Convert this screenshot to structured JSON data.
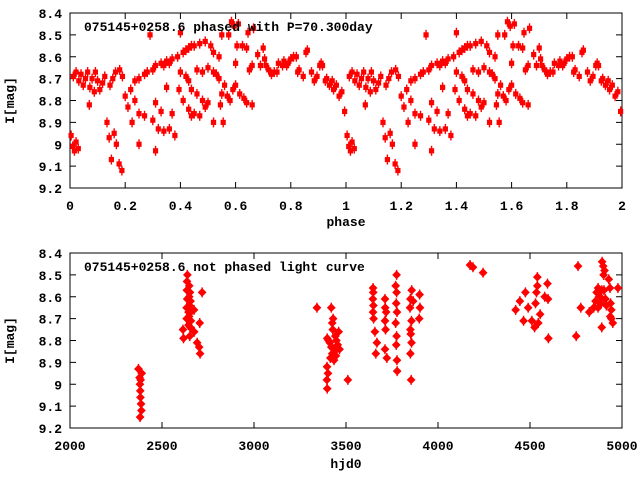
{
  "figure": {
    "background": "#ffffff",
    "point_color": "#ff0000",
    "axis_color": "#000000",
    "aria_label": "Two stacked light-curve scatter plots for star 075145+0258.6"
  },
  "chart_data": [
    {
      "type": "scatter",
      "panel": "top",
      "title": "075145+0258.6 phased with P=70.300day",
      "xlabel": "phase",
      "ylabel": "I[mag]",
      "xlim": [
        0,
        2
      ],
      "ylim": [
        9.2,
        8.4
      ],
      "grid": false,
      "legend": "none",
      "marker": "filled-square-with-errorbar",
      "x_ticks": [
        "0",
        "0.2",
        "0.4",
        "0.6",
        "0.8",
        "1",
        "1.2",
        "1.4",
        "1.6",
        "1.8",
        "2"
      ],
      "x_tick_values": [
        0,
        0.2,
        0.4,
        0.6,
        0.8,
        1,
        1.2,
        1.4,
        1.6,
        1.8,
        2
      ],
      "y_ticks": [
        "8.4",
        "8.5",
        "8.6",
        "8.7",
        "8.8",
        "8.9",
        "9",
        "9.1",
        "9.2"
      ],
      "y_tick_values": [
        8.4,
        8.5,
        8.6,
        8.7,
        8.8,
        8.9,
        9.0,
        9.1,
        9.2
      ],
      "phase_duplicated": true,
      "points": [
        [
          0.004,
          8.96
        ],
        [
          0.01,
          9.01
        ],
        [
          0.016,
          9.03
        ],
        [
          0.022,
          8.99
        ],
        [
          0.03,
          9.02
        ],
        [
          0.012,
          8.69
        ],
        [
          0.022,
          8.67
        ],
        [
          0.032,
          8.71
        ],
        [
          0.04,
          8.68
        ],
        [
          0.048,
          8.73
        ],
        [
          0.056,
          8.7
        ],
        [
          0.064,
          8.67
        ],
        [
          0.072,
          8.74
        ],
        [
          0.08,
          8.7
        ],
        [
          0.088,
          8.76
        ],
        [
          0.092,
          8.67
        ],
        [
          0.1,
          8.71
        ],
        [
          0.07,
          8.82
        ],
        [
          0.108,
          8.75
        ],
        [
          0.118,
          8.72
        ],
        [
          0.126,
          8.69
        ],
        [
          0.134,
          8.9
        ],
        [
          0.142,
          8.97
        ],
        [
          0.15,
          9.07
        ],
        [
          0.16,
          8.95
        ],
        [
          0.168,
          9.0
        ],
        [
          0.178,
          9.09
        ],
        [
          0.188,
          9.12
        ],
        [
          0.145,
          8.73
        ],
        [
          0.155,
          8.7
        ],
        [
          0.165,
          8.67
        ],
        [
          0.18,
          8.66
        ],
        [
          0.19,
          8.69
        ],
        [
          0.2,
          8.78
        ],
        [
          0.21,
          8.83
        ],
        [
          0.22,
          8.75
        ],
        [
          0.225,
          8.9
        ],
        [
          0.235,
          8.71
        ],
        [
          0.235,
          8.8
        ],
        [
          0.25,
          8.7
        ],
        [
          0.25,
          8.86
        ],
        [
          0.25,
          9.0
        ],
        [
          0.27,
          8.68
        ],
        [
          0.27,
          8.87
        ],
        [
          0.28,
          8.67
        ],
        [
          0.29,
          8.5
        ],
        [
          0.3,
          8.66
        ],
        [
          0.3,
          8.89
        ],
        [
          0.31,
          8.64
        ],
        [
          0.31,
          9.03
        ],
        [
          0.32,
          8.93
        ],
        [
          0.33,
          8.63
        ],
        [
          0.34,
          8.64
        ],
        [
          0.34,
          8.94
        ],
        [
          0.35,
          8.62
        ],
        [
          0.36,
          8.63
        ],
        [
          0.36,
          8.93
        ],
        [
          0.37,
          8.61
        ],
        [
          0.38,
          8.96
        ],
        [
          0.39,
          8.6
        ],
        [
          0.4,
          8.49
        ],
        [
          0.41,
          8.58
        ],
        [
          0.4,
          8.67
        ],
        [
          0.42,
          8.69
        ],
        [
          0.31,
          8.81
        ],
        [
          0.33,
          8.85
        ],
        [
          0.35,
          8.74
        ],
        [
          0.37,
          8.86
        ],
        [
          0.395,
          8.75
        ],
        [
          0.42,
          8.57
        ],
        [
          0.43,
          8.56
        ],
        [
          0.43,
          8.71
        ],
        [
          0.43,
          8.84
        ],
        [
          0.44,
          8.55
        ],
        [
          0.44,
          8.75
        ],
        [
          0.45,
          8.55
        ],
        [
          0.45,
          8.86
        ],
        [
          0.46,
          8.77
        ],
        [
          0.46,
          8.66
        ],
        [
          0.47,
          8.54
        ],
        [
          0.47,
          8.87
        ],
        [
          0.48,
          8.67
        ],
        [
          0.49,
          8.53
        ],
        [
          0.49,
          8.83
        ],
        [
          0.5,
          8.65
        ],
        [
          0.51,
          8.55
        ],
        [
          0.52,
          8.58
        ],
        [
          0.52,
          8.67
        ],
        [
          0.53,
          8.68
        ],
        [
          0.54,
          8.6
        ],
        [
          0.54,
          8.7
        ],
        [
          0.55,
          8.5
        ],
        [
          0.55,
          8.77
        ],
        [
          0.56,
          8.73
        ],
        [
          0.57,
          8.78
        ],
        [
          0.575,
          8.5
        ],
        [
          0.58,
          8.8
        ],
        [
          0.585,
          8.44
        ],
        [
          0.59,
          8.75
        ],
        [
          0.595,
          8.46
        ],
        [
          0.6,
          8.73
        ],
        [
          0.6,
          8.63
        ],
        [
          0.605,
          8.55
        ],
        [
          0.41,
          8.8
        ],
        [
          0.44,
          8.87
        ],
        [
          0.48,
          8.8
        ],
        [
          0.5,
          8.81
        ],
        [
          0.52,
          8.9
        ],
        [
          0.545,
          8.82
        ],
        [
          0.555,
          8.9
        ],
        [
          0.61,
          8.45
        ],
        [
          0.615,
          8.77
        ],
        [
          0.625,
          8.55
        ],
        [
          0.63,
          8.79
        ],
        [
          0.64,
          8.56
        ],
        [
          0.645,
          8.49
        ],
        [
          0.65,
          8.66
        ],
        [
          0.66,
          8.64
        ],
        [
          0.665,
          8.47
        ],
        [
          0.68,
          8.59
        ],
        [
          0.69,
          8.64
        ],
        [
          0.7,
          8.56
        ],
        [
          0.705,
          8.61
        ],
        [
          0.71,
          8.64
        ],
        [
          0.72,
          8.66
        ],
        [
          0.73,
          8.68
        ],
        [
          0.74,
          8.67
        ],
        [
          0.75,
          8.67
        ],
        [
          0.755,
          8.63
        ],
        [
          0.77,
          8.64
        ],
        [
          0.775,
          8.62
        ],
        [
          0.785,
          8.64
        ],
        [
          0.79,
          8.63
        ],
        [
          0.8,
          8.61
        ],
        [
          0.64,
          8.81
        ],
        [
          0.66,
          8.82
        ],
        [
          0.81,
          8.6
        ],
        [
          0.82,
          8.6
        ],
        [
          0.825,
          8.67
        ],
        [
          0.83,
          8.66
        ],
        [
          0.845,
          8.69
        ],
        [
          0.855,
          8.58
        ],
        [
          0.86,
          8.57
        ],
        [
          0.875,
          8.67
        ],
        [
          0.885,
          8.71
        ],
        [
          0.895,
          8.69
        ],
        [
          0.905,
          8.64
        ],
        [
          0.91,
          8.63
        ],
        [
          0.915,
          8.64
        ],
        [
          0.925,
          8.71
        ],
        [
          0.93,
          8.7
        ],
        [
          0.94,
          8.73
        ],
        [
          0.95,
          8.71
        ],
        [
          0.955,
          8.75
        ],
        [
          0.965,
          8.73
        ],
        [
          0.975,
          8.78
        ],
        [
          0.985,
          8.76
        ],
        [
          0.995,
          8.85
        ]
      ]
    },
    {
      "type": "scatter",
      "panel": "bottom",
      "title": "075145+0258.6 not phased light curve",
      "xlabel": "hjd0",
      "ylabel": "I[mag]",
      "xlim": [
        2000,
        5000
      ],
      "ylim": [
        9.2,
        8.4
      ],
      "grid": false,
      "legend": "none",
      "marker": "filled-diamond-with-errorbar",
      "x_ticks": [
        "2000",
        "2500",
        "3000",
        "3500",
        "4000",
        "4500",
        "5000"
      ],
      "x_tick_values": [
        2000,
        2500,
        3000,
        3500,
        4000,
        4500,
        5000
      ],
      "y_ticks": [
        "8.4",
        "8.5",
        "8.6",
        "8.7",
        "8.8",
        "8.9",
        "9",
        "9.1",
        "9.2"
      ],
      "y_tick_values": [
        8.4,
        8.5,
        8.6,
        8.7,
        8.8,
        8.9,
        9.0,
        9.1,
        9.2
      ],
      "points": [
        [
          2372,
          8.93
        ],
        [
          2390,
          8.95
        ],
        [
          2378,
          8.97
        ],
        [
          2380,
          9.0
        ],
        [
          2382,
          9.03
        ],
        [
          2383,
          9.06
        ],
        [
          2386,
          9.09
        ],
        [
          2388,
          9.12
        ],
        [
          2384,
          8.98
        ],
        [
          2381,
          9.15
        ],
        [
          2638,
          8.5
        ],
        [
          2636,
          8.53
        ],
        [
          2648,
          8.55
        ],
        [
          2635,
          8.57
        ],
        [
          2652,
          8.58
        ],
        [
          2718,
          8.58
        ],
        [
          2648,
          8.6
        ],
        [
          2637,
          8.61
        ],
        [
          2655,
          8.62
        ],
        [
          2650,
          8.64
        ],
        [
          2634,
          8.65
        ],
        [
          2674,
          8.66
        ],
        [
          2644,
          8.67
        ],
        [
          2656,
          8.67
        ],
        [
          2647,
          8.69
        ],
        [
          2634,
          8.7
        ],
        [
          2657,
          8.71
        ],
        [
          2705,
          8.72
        ],
        [
          2644,
          8.73
        ],
        [
          2654,
          8.74
        ],
        [
          2614,
          8.75
        ],
        [
          2675,
          8.76
        ],
        [
          2651,
          8.78
        ],
        [
          2617,
          8.79
        ],
        [
          2691,
          8.81
        ],
        [
          2702,
          8.83
        ],
        [
          2707,
          8.86
        ],
        [
          3342,
          8.65
        ],
        [
          3420,
          8.65
        ],
        [
          3430,
          8.7
        ],
        [
          3425,
          8.72
        ],
        [
          3428,
          8.75
        ],
        [
          3460,
          8.76
        ],
        [
          3398,
          8.79
        ],
        [
          3405,
          8.8
        ],
        [
          3442,
          8.78
        ],
        [
          3448,
          8.8
        ],
        [
          3412,
          8.81
        ],
        [
          3420,
          8.83
        ],
        [
          3432,
          8.84
        ],
        [
          3438,
          8.85
        ],
        [
          3425,
          8.86
        ],
        [
          3445,
          8.87
        ],
        [
          3415,
          8.88
        ],
        [
          3435,
          8.89
        ],
        [
          3397,
          8.92
        ],
        [
          3402,
          8.95
        ],
        [
          3396,
          8.98
        ],
        [
          3510,
          8.98
        ],
        [
          3398,
          9.02
        ],
        [
          3455,
          8.82
        ],
        [
          3465,
          8.84
        ],
        [
          3647,
          8.56
        ],
        [
          3648,
          8.58
        ],
        [
          3646,
          8.61
        ],
        [
          3649,
          8.64
        ],
        [
          3647,
          8.67
        ],
        [
          3650,
          8.7
        ],
        [
          3657,
          8.76
        ],
        [
          3668,
          8.81
        ],
        [
          3662,
          8.86
        ],
        [
          3712,
          8.61
        ],
        [
          3713,
          8.65
        ],
        [
          3718,
          8.67
        ],
        [
          3712,
          8.71
        ],
        [
          3715,
          8.75
        ],
        [
          3712,
          8.84
        ],
        [
          3722,
          8.88
        ],
        [
          3775,
          8.5
        ],
        [
          3770,
          8.55
        ],
        [
          3775,
          8.58
        ],
        [
          3773,
          8.63
        ],
        [
          3777,
          8.67
        ],
        [
          3770,
          8.72
        ],
        [
          3775,
          8.78
        ],
        [
          3773,
          8.82
        ],
        [
          3777,
          8.89
        ],
        [
          3778,
          8.94
        ],
        [
          3857,
          8.57
        ],
        [
          3850,
          8.61
        ],
        [
          3865,
          8.62
        ],
        [
          3848,
          8.65
        ],
        [
          3856,
          8.71
        ],
        [
          3850,
          8.75
        ],
        [
          3852,
          8.77
        ],
        [
          3856,
          8.81
        ],
        [
          3850,
          8.86
        ],
        [
          3854,
          8.98
        ],
        [
          3900,
          8.59
        ],
        [
          3902,
          8.65
        ],
        [
          3898,
          8.7
        ],
        [
          4174,
          8.455
        ],
        [
          4190,
          8.465
        ],
        [
          4245,
          8.49
        ],
        [
          4540,
          8.51
        ],
        [
          4595,
          8.54
        ],
        [
          4540,
          8.55
        ],
        [
          4475,
          8.58
        ],
        [
          4535,
          8.58
        ],
        [
          4580,
          8.6
        ],
        [
          4445,
          8.62
        ],
        [
          4530,
          8.63
        ],
        [
          4490,
          8.65
        ],
        [
          4555,
          8.68
        ],
        [
          4465,
          8.71
        ],
        [
          4510,
          8.71
        ],
        [
          4525,
          8.74
        ],
        [
          4545,
          8.72
        ],
        [
          4422,
          8.66
        ],
        [
          4598,
          8.61
        ],
        [
          4600,
          8.79
        ],
        [
          4761,
          8.46
        ],
        [
          4892,
          8.44
        ],
        [
          4898,
          8.46
        ],
        [
          4905,
          8.48
        ],
        [
          4900,
          8.5
        ],
        [
          4928,
          8.52
        ],
        [
          4870,
          8.56
        ],
        [
          4890,
          8.57
        ],
        [
          4902,
          8.57
        ],
        [
          4935,
          8.56
        ],
        [
          4978,
          8.56
        ],
        [
          4862,
          8.58
        ],
        [
          4880,
          8.6
        ],
        [
          4910,
          8.61
        ],
        [
          4856,
          8.62
        ],
        [
          4886,
          8.63
        ],
        [
          4915,
          8.64
        ],
        [
          4870,
          8.65
        ],
        [
          4846,
          8.65
        ],
        [
          4938,
          8.63
        ],
        [
          4942,
          8.66
        ],
        [
          4936,
          8.69
        ],
        [
          4950,
          8.72
        ],
        [
          4822,
          8.67
        ],
        [
          4776,
          8.65
        ],
        [
          4890,
          8.74
        ],
        [
          4751,
          8.78
        ],
        [
          4942,
          8.7
        ]
      ]
    }
  ]
}
